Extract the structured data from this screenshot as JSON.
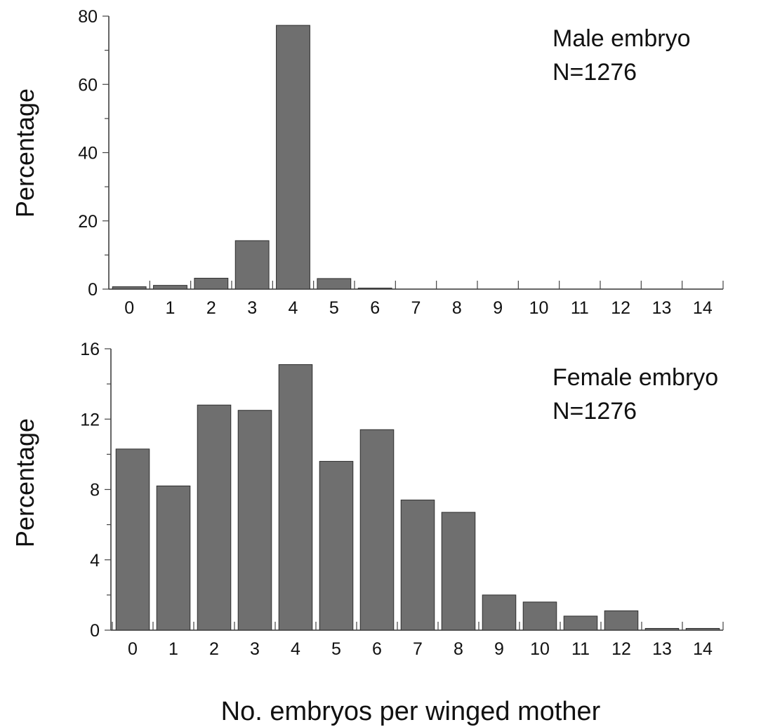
{
  "chart_data": [
    {
      "type": "bar",
      "categories": [
        "0",
        "1",
        "2",
        "3",
        "4",
        "5",
        "6",
        "7",
        "8",
        "9",
        "10",
        "11",
        "12",
        "13",
        "14"
      ],
      "values": [
        0.7,
        1.1,
        3.2,
        14.2,
        77.3,
        3.1,
        0.3,
        0,
        0,
        0,
        0,
        0,
        0,
        0,
        0
      ],
      "ylabel": "Percentage",
      "ylim": [
        0,
        80
      ],
      "yticks": [
        "0",
        "20",
        "40",
        "60",
        "80"
      ],
      "annotation": [
        "Male embryo",
        "N=1276"
      ]
    },
    {
      "type": "bar",
      "categories": [
        "0",
        "1",
        "2",
        "3",
        "4",
        "5",
        "6",
        "7",
        "8",
        "9",
        "10",
        "11",
        "12",
        "13",
        "14"
      ],
      "values": [
        10.3,
        8.2,
        12.8,
        12.5,
        15.1,
        9.6,
        11.4,
        7.4,
        6.7,
        2.0,
        1.6,
        0.8,
        1.1,
        0.1,
        0.1
      ],
      "ylabel": "Percentage",
      "ylim": [
        0,
        16
      ],
      "yticks": [
        "0",
        "4",
        "8",
        "12",
        "16"
      ],
      "annotation": [
        "Female embryo",
        "N=1276"
      ]
    }
  ],
  "xlabel": "No. embryos per winged mother",
  "colors": {
    "bar_fill": "#6f6f6f",
    "bar_stroke": "#2e2e2e",
    "axis": "#333333"
  }
}
